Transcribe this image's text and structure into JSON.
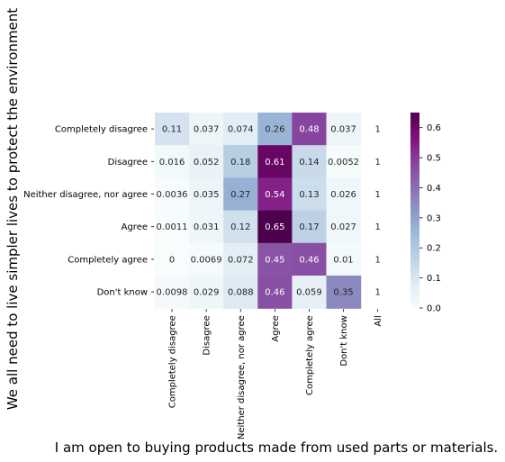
{
  "chart_data": {
    "type": "heatmap",
    "title": "",
    "xlabel": "I am open to buying products made from used parts or materials.",
    "ylabel": "We all need to live simpler lives to protect the environment",
    "x_categories": [
      "Completely disagree",
      "Disagree",
      "Neither disagree, nor agree",
      "Agree",
      "Completely agree",
      "Don't know",
      "All"
    ],
    "y_categories": [
      "Completely disagree",
      "Disagree",
      "Neither disagree, nor agree",
      "Agree",
      "Completely agree",
      "Don't know"
    ],
    "cells": [
      [
        "0.11",
        "0.037",
        "0.074",
        "0.26",
        "0.48",
        "0.037",
        "1"
      ],
      [
        "0.016",
        "0.052",
        "0.18",
        "0.61",
        "0.14",
        "0.0052",
        "1"
      ],
      [
        "0.0036",
        "0.035",
        "0.27",
        "0.54",
        "0.13",
        "0.026",
        "1"
      ],
      [
        "0.0011",
        "0.031",
        "0.12",
        "0.65",
        "0.17",
        "0.027",
        "1"
      ],
      [
        "0",
        "0.0069",
        "0.072",
        "0.45",
        "0.46",
        "0.01",
        "1"
      ],
      [
        "0.0098",
        "0.029",
        "0.088",
        "0.46",
        "0.059",
        "0.35",
        "1"
      ]
    ],
    "colormap": "BuPu",
    "colorbar_range": [
      0.0,
      0.65
    ],
    "colorbar_ticks": [
      "0.0",
      "0.1",
      "0.2",
      "0.3",
      "0.4",
      "0.5",
      "0.6"
    ],
    "colors": {
      "low": "#f7fcfd",
      "high": "#4d004b"
    },
    "grid": false,
    "legend": "colorbar-right"
  }
}
